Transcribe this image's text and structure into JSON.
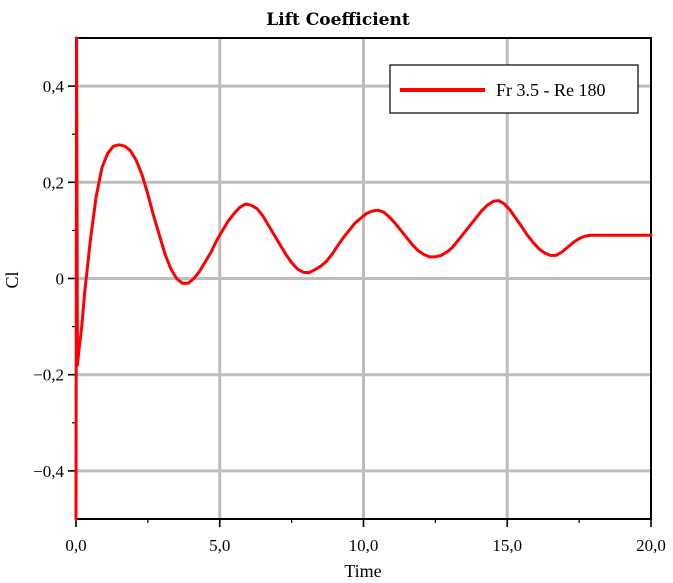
{
  "chart_data": {
    "type": "line",
    "title": "Lift Coefficient",
    "xlabel": "Time",
    "ylabel": "Cl",
    "xlim": [
      0,
      20
    ],
    "ylim": [
      -0.5,
      0.5
    ],
    "xticks": [
      0,
      5,
      10,
      15,
      20
    ],
    "xtick_labels": [
      "0,0",
      "5,0",
      "10,0",
      "15,0",
      "20,0"
    ],
    "yticks": [
      -0.4,
      -0.2,
      0,
      0.2,
      0.4
    ],
    "ytick_labels": [
      "−0,4",
      "−0,2",
      "0",
      "0,2",
      "0,4"
    ],
    "grid": true,
    "legend_position": "top-right",
    "series": [
      {
        "name": "Fr 3.5 - Re 180",
        "color": "#ff0000",
        "x": [
          0.0,
          0.02,
          0.05,
          0.1,
          0.2,
          0.3,
          0.5,
          0.7,
          0.9,
          1.1,
          1.3,
          1.5,
          1.7,
          1.9,
          2.1,
          2.3,
          2.5,
          2.7,
          2.9,
          3.1,
          3.3,
          3.5,
          3.7,
          3.9,
          4.1,
          4.3,
          4.5,
          4.7,
          4.9,
          5.1,
          5.3,
          5.5,
          5.7,
          5.9,
          6.1,
          6.3,
          6.5,
          6.7,
          6.9,
          7.1,
          7.3,
          7.5,
          7.7,
          7.9,
          8.1,
          8.3,
          8.5,
          8.7,
          8.9,
          9.1,
          9.3,
          9.5,
          9.7,
          9.9,
          10.1,
          10.3,
          10.5,
          10.7,
          10.9,
          11.1,
          11.3,
          11.5,
          11.7,
          11.9,
          12.1,
          12.3,
          12.5,
          12.7,
          12.9,
          13.1,
          13.3,
          13.5,
          13.7,
          13.9,
          14.1,
          14.3,
          14.5,
          14.7,
          14.9,
          15.1,
          15.3,
          15.5,
          15.7,
          15.9,
          16.1,
          16.3,
          16.5,
          16.7,
          16.9,
          17.1,
          17.3,
          17.5,
          17.7,
          17.9,
          18.1,
          18.3,
          18.5,
          18.7,
          18.9,
          19.1,
          19.3,
          19.5,
          19.7,
          19.9,
          20.0
        ],
        "y": [
          -0.5,
          0.5,
          -0.18,
          -0.15,
          -0.1,
          -0.03,
          0.08,
          0.17,
          0.23,
          0.26,
          0.275,
          0.278,
          0.275,
          0.265,
          0.245,
          0.215,
          0.175,
          0.13,
          0.09,
          0.05,
          0.02,
          0.0,
          -0.01,
          -0.01,
          0.0,
          0.015,
          0.035,
          0.055,
          0.08,
          0.1,
          0.12,
          0.135,
          0.148,
          0.155,
          0.152,
          0.145,
          0.13,
          0.11,
          0.09,
          0.07,
          0.05,
          0.033,
          0.02,
          0.013,
          0.012,
          0.018,
          0.025,
          0.035,
          0.05,
          0.068,
          0.085,
          0.1,
          0.115,
          0.125,
          0.135,
          0.14,
          0.142,
          0.138,
          0.128,
          0.115,
          0.1,
          0.085,
          0.07,
          0.058,
          0.05,
          0.045,
          0.045,
          0.048,
          0.055,
          0.065,
          0.08,
          0.095,
          0.11,
          0.125,
          0.14,
          0.152,
          0.16,
          0.162,
          0.155,
          0.142,
          0.125,
          0.108,
          0.09,
          0.075,
          0.062,
          0.053,
          0.048,
          0.048,
          0.055,
          0.065,
          0.075,
          0.083,
          0.088,
          0.09,
          0.09,
          0.09,
          0.09,
          0.09,
          0.09,
          0.09,
          0.09,
          0.09,
          0.09,
          0.09,
          0.09
        ]
      }
    ]
  }
}
